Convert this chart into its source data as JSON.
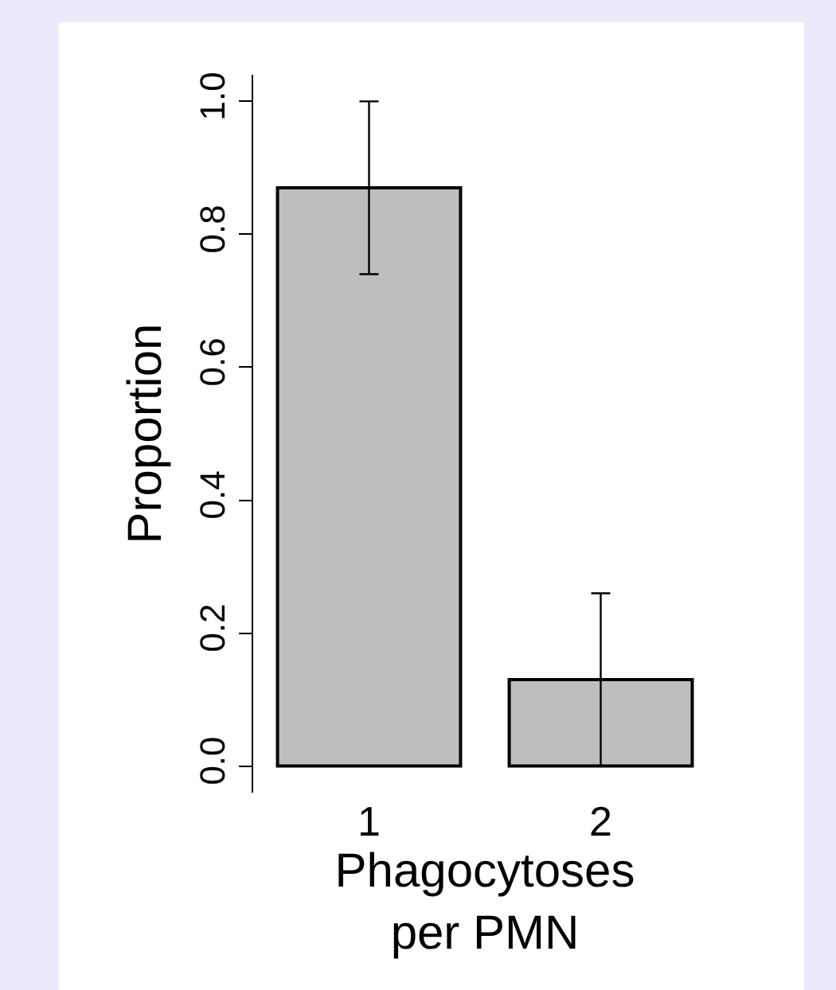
{
  "chart_data": {
    "type": "bar",
    "xlabel": "Phagocytoses\nper PMN",
    "ylabel": "Proportion",
    "categories": [
      "1",
      "2"
    ],
    "values": [
      0.87,
      0.13
    ],
    "errors": [
      0.13,
      0.13
    ],
    "color": "#bebebe",
    "ylim": [
      -0.04,
      1.04
    ],
    "yticks": [
      {
        "value": 0,
        "label": "0.0"
      },
      0.2,
      0.4,
      0.6,
      0.8,
      {
        "value": 1,
        "label": "1.0"
      }
    ],
    "grid": false
  }
}
